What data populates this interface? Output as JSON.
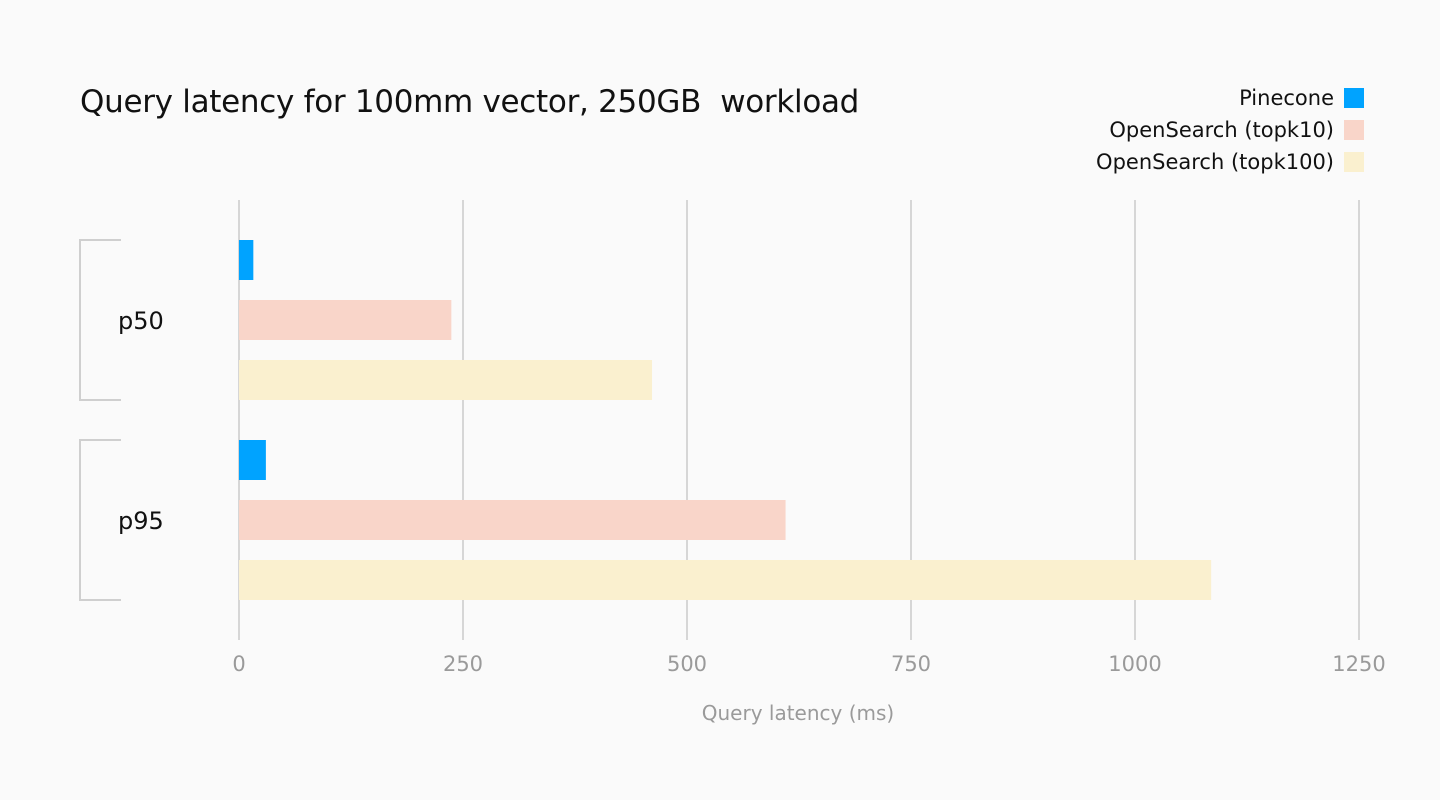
{
  "chart_data": {
    "type": "bar",
    "orientation": "horizontal",
    "title": "Query latency for 100mm vector, 250GB  workload",
    "xlabel": "Query latency (ms)",
    "ylabel": "",
    "categories": [
      "p50",
      "p95"
    ],
    "series": [
      {
        "name": "Pinecone",
        "color": "#00a3ff",
        "values": [
          16,
          30
        ]
      },
      {
        "name": "OpenSearch (topk10)",
        "color": "#f9d5c9",
        "values": [
          237,
          610
        ]
      },
      {
        "name": "OpenSearch (topk100)",
        "color": "#faf0cf",
        "values": [
          461,
          1085
        ]
      }
    ],
    "xlim": [
      0,
      1250
    ],
    "xticks": [
      0,
      250,
      500,
      750,
      1000,
      1250
    ],
    "grid": true,
    "legend_position": "top-right"
  }
}
